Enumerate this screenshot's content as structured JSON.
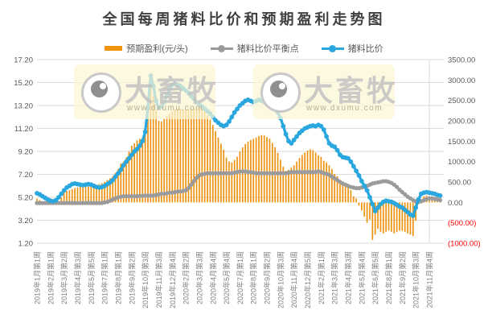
{
  "title": "全国每周猪料比价和预期盈利走势图",
  "watermark": {
    "brand": "大畜牧",
    "url": "www.dxumu.com"
  },
  "chart_data": {
    "type": "combo",
    "title": "全国每周猪料比价和预期盈利走势图",
    "grid": "horizontal",
    "legend_position": "top",
    "x_axis": {
      "points": 150,
      "tick_interval": 5,
      "tick_labels": [
        "2019年1月第1周",
        "2019年2月第1周",
        "2019年3月第2周",
        "2019年4月第3周",
        "2019年5月第5周",
        "2019年7月第1周",
        "2019年8月第1周",
        "2019年9月第2周",
        "2019年10月第3周",
        "2019年11月第3周",
        "2019年12月第4周",
        "2020年2月第2周",
        "2020年3月第3周",
        "2020年4月第4周",
        "2020年5月第4周",
        "2020年7月第1周",
        "2020年8月第1周",
        "2020年9月第2周",
        "2020年10月第3周",
        "2020年11月第4周",
        "2020年12月第5周",
        "2021年2月第1周",
        "2021年3月第3周",
        "2021年4月第3周",
        "2021年5月第4周",
        "2021年6月第5周",
        "2021年8月第1周",
        "2021年9月第2周",
        "2021年10月第3周",
        "2021年11月第4周"
      ]
    },
    "left_axis": {
      "min": 1.2,
      "max": 17.2,
      "step": 2,
      "tick_labels": [
        "17.20",
        "15.20",
        "13.20",
        "11.20",
        "9.20",
        "7.20",
        "5.20",
        "3.20",
        "1.20"
      ]
    },
    "right_axis": {
      "min": -1000,
      "max": 3500,
      "step": 500,
      "tick_labels": [
        "3500.00",
        "3000.00",
        "2500.00",
        "2000.00",
        "1500.00",
        "1000.00",
        "500.00",
        "0.00",
        "(500.00)",
        "(1000.00)"
      ],
      "negative_tick_color": "#FF0000"
    },
    "series": [
      {
        "name": "预期盈利(元/头)",
        "type": "bar",
        "axis": "right",
        "color": "#EE9310",
        "values": [
          95,
          60,
          30,
          10,
          20,
          0,
          -40,
          -20,
          30,
          120,
          250,
          280,
          300,
          320,
          350,
          370,
          380,
          370,
          380,
          390,
          400,
          420,
          430,
          450,
          470,
          500,
          550,
          590,
          640,
          720,
          820,
          950,
          1000,
          1100,
          1250,
          1390,
          1450,
          1520,
          1560,
          1590,
          1730,
          2100,
          2870,
          2600,
          2250,
          2000,
          1980,
          2060,
          2120,
          2180,
          2250,
          2280,
          2300,
          2290,
          2280,
          2270,
          2280,
          2300,
          2310,
          2320,
          2330,
          2300,
          2220,
          2140,
          2030,
          1900,
          1750,
          1590,
          1440,
          1290,
          1100,
          1000,
          980,
          1040,
          1120,
          1250,
          1350,
          1430,
          1490,
          1530,
          1560,
          1590,
          1625,
          1650,
          1640,
          1600,
          1560,
          1455,
          1350,
          1215,
          1045,
          875,
          775,
          800,
          850,
          910,
          1000,
          1090,
          1160,
          1220,
          1270,
          1300,
          1280,
          1220,
          1150,
          1115,
          1020,
          980,
          910,
          820,
          700,
          640,
          540,
          480,
          435,
          380,
          300,
          150,
          95,
          -80,
          -200,
          -350,
          -500,
          -420,
          -920,
          -790,
          -650,
          -720,
          -760,
          -720,
          -690,
          -720,
          -760,
          -720,
          -690,
          -700,
          -720,
          -760,
          -790,
          -825,
          -450,
          -40,
          80,
          150,
          170,
          150,
          120,
          140,
          130,
          150
        ]
      },
      {
        "name": "猪料比价平衡点",
        "type": "line",
        "axis": "left",
        "color": "#9B9B9B",
        "values": [
          4.7,
          4.7,
          4.7,
          4.7,
          4.7,
          4.7,
          4.7,
          4.7,
          4.7,
          4.7,
          4.7,
          4.7,
          4.7,
          4.7,
          4.7,
          4.7,
          4.7,
          4.7,
          4.7,
          4.7,
          4.7,
          4.7,
          4.7,
          4.7,
          4.7,
          4.75,
          4.8,
          4.9,
          5.0,
          5.1,
          5.2,
          5.25,
          5.3,
          5.3,
          5.3,
          5.3,
          5.3,
          5.3,
          5.32,
          5.33,
          5.35,
          5.35,
          5.35,
          5.35,
          5.4,
          5.45,
          5.5,
          5.5,
          5.55,
          5.6,
          5.6,
          5.65,
          5.7,
          5.7,
          5.75,
          5.8,
          6.0,
          6.3,
          6.6,
          6.9,
          7.1,
          7.2,
          7.25,
          7.3,
          7.3,
          7.3,
          7.3,
          7.3,
          7.3,
          7.3,
          7.3,
          7.3,
          7.3,
          7.35,
          7.4,
          7.45,
          7.45,
          7.45,
          7.4,
          7.4,
          7.35,
          7.3,
          7.3,
          7.3,
          7.3,
          7.3,
          7.3,
          7.3,
          7.3,
          7.3,
          7.3,
          7.3,
          7.3,
          7.35,
          7.4,
          7.4,
          7.4,
          7.4,
          7.4,
          7.4,
          7.4,
          7.4,
          7.4,
          7.4,
          7.45,
          7.4,
          7.3,
          7.25,
          7.15,
          7.0,
          6.85,
          6.7,
          6.55,
          6.4,
          6.3,
          6.2,
          6.1,
          6.05,
          6.0,
          6.0,
          6.05,
          6.1,
          6.2,
          6.3,
          6.4,
          6.45,
          6.5,
          6.55,
          6.6,
          6.6,
          6.55,
          6.45,
          6.3,
          6.1,
          5.85,
          5.65,
          5.45,
          5.25,
          5.1,
          4.95,
          4.85,
          4.8,
          4.85,
          4.95,
          5.05,
          5.1,
          5.1,
          5.05,
          5.0,
          4.95
        ]
      },
      {
        "name": "猪料比价",
        "type": "line",
        "axis": "left",
        "color": "#2AA7DF",
        "values": [
          5.55,
          5.45,
          5.3,
          5.15,
          5.0,
          4.9,
          4.85,
          4.95,
          5.2,
          5.5,
          5.8,
          6.05,
          6.2,
          6.35,
          6.4,
          6.35,
          6.3,
          6.25,
          6.3,
          6.35,
          6.3,
          6.2,
          6.1,
          6.05,
          6.1,
          6.2,
          6.35,
          6.5,
          6.7,
          7.0,
          7.3,
          7.6,
          8.0,
          8.3,
          8.6,
          8.9,
          9.2,
          9.4,
          9.7,
          10.1,
          10.9,
          13.0,
          15.8,
          14.9,
          13.6,
          13.0,
          13.1,
          13.5,
          14.1,
          14.6,
          15.0,
          15.1,
          15.0,
          14.9,
          14.7,
          14.5,
          14.3,
          14.0,
          13.8,
          13.5,
          13.3,
          13.1,
          12.9,
          12.7,
          12.5,
          12.2,
          11.9,
          11.7,
          11.5,
          11.4,
          11.5,
          11.8,
          12.2,
          12.6,
          12.9,
          13.2,
          13.4,
          13.6,
          13.7,
          13.6,
          13.5,
          13.6,
          13.7,
          13.6,
          13.5,
          13.5,
          13.4,
          13.3,
          13.0,
          12.6,
          12.1,
          11.4,
          10.7,
          10.1,
          9.9,
          10.2,
          10.5,
          10.8,
          11.0,
          11.2,
          11.3,
          11.4,
          11.45,
          11.4,
          11.5,
          11.4,
          11.1,
          10.5,
          9.9,
          9.7,
          9.6,
          9.3,
          8.9,
          8.7,
          8.65,
          8.6,
          8.3,
          7.9,
          7.5,
          7.1,
          6.6,
          6.2,
          5.8,
          5.2,
          4.6,
          4.0,
          4.3,
          4.6,
          4.8,
          4.9,
          4.85,
          4.8,
          4.7,
          4.55,
          4.4,
          4.3,
          4.1,
          3.9,
          3.7,
          3.6,
          4.3,
          5.0,
          5.5,
          5.6,
          5.65,
          5.6,
          5.55,
          5.5,
          5.4,
          5.35
        ]
      }
    ],
    "colors": {
      "grid": "#DADADA",
      "axis_text": "#595959",
      "x_axis_text": "#7F7F7F",
      "title_text": "#404040"
    }
  }
}
